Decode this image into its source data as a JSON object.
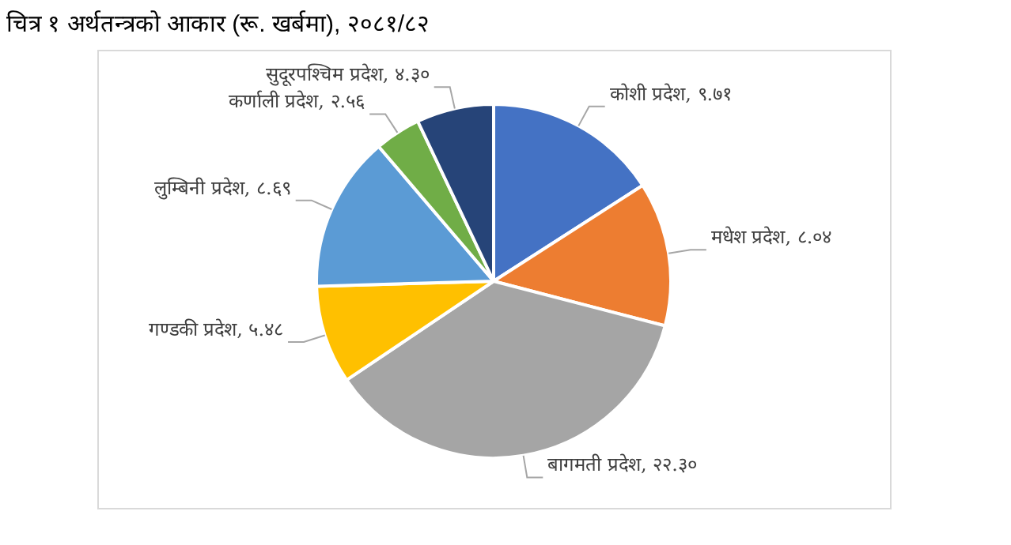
{
  "chart_data": {
    "type": "pie",
    "title": "चित्र १ अर्थतन्त्रको आकार (रू. खर्बमा), २०८१/८२",
    "categories": [
      "कोशी प्रदेश",
      "मधेश प्रदेश",
      "बागमती प्रदेश",
      "गण्डकी प्रदेश",
      "लुम्बिनी प्रदेश",
      "कर्णाली प्रदेश",
      "सुदूरपश्चिम प्रदेश"
    ],
    "values": [
      9.71,
      8.04,
      22.3,
      5.48,
      8.69,
      2.56,
      4.3
    ],
    "value_labels": [
      "९.७१",
      "८.०४",
      "२२.३०",
      "५.४८",
      "८.६९",
      "२.५६",
      "४.३०"
    ],
    "colors": [
      "#4472c4",
      "#ed7d31",
      "#a5a5a5",
      "#ffc000",
      "#5b9bd5",
      "#70ad47",
      "#264478"
    ],
    "legend": false
  }
}
